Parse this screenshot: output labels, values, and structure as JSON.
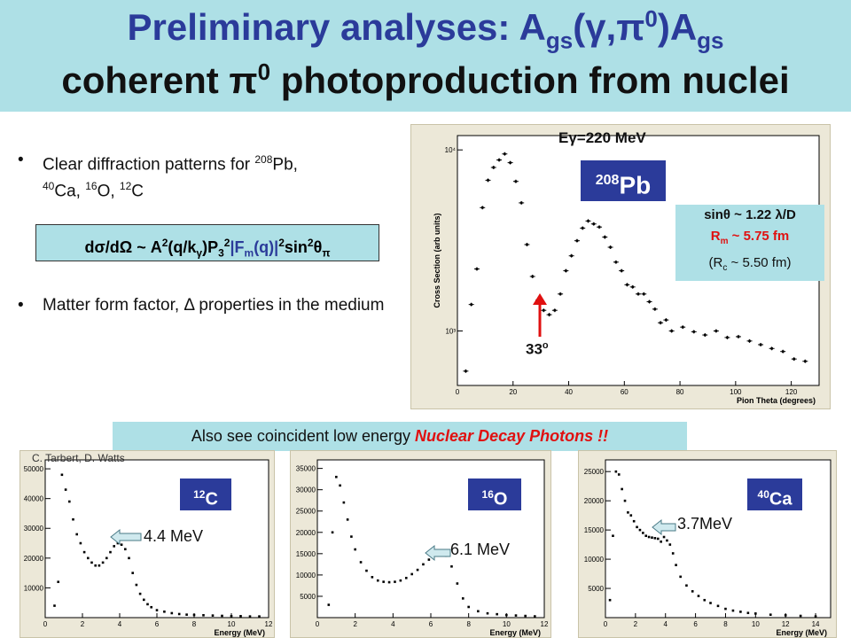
{
  "title": {
    "line1_a": "Preliminary analyses:  A",
    "line1_sub1": "gs",
    "line1_b": "(γ,π",
    "line1_sup": "0",
    "line1_c": ")A",
    "line1_sub2": "gs",
    "line2_a": "coherent π",
    "line2_sup": "0",
    "line2_b": " photoproduction from nuclei"
  },
  "bullets": {
    "dot": "•",
    "b1": {
      "t1": "Clear diffraction patterns for ",
      "s1": "208",
      "t2": "Pb, ",
      "s2": "40",
      "t3": "Ca, ",
      "s3": "16",
      "t4": "O, ",
      "s4": "12",
      "t5": "C"
    },
    "b2": {
      "t1": "Matter form factor,  Δ properties in the medium"
    }
  },
  "formula": {
    "p1": "dσ/dΩ ~ A",
    "sup1": "2",
    "p2": "(q/k",
    "sub1": "γ",
    "p3": ")P",
    "sub2": "3",
    "sup2": "2",
    "p4": "|F",
    "sub3": "m",
    "p5": "(q)|",
    "sup3": "2",
    "p6": "sin",
    "sup4": "2",
    "p7": "θ",
    "sub4": "π"
  },
  "main_plot": {
    "energy_label": "Eγ=220 MeV",
    "nucleus_mass": "208",
    "nucleus_sym": "Pb",
    "minimum_label": "33",
    "minimum_sup": "o",
    "info": {
      "line1": "sinθ ~ 1.22 λ/D",
      "line2": "R",
      "line2_sub": "m",
      "line2_b": " ~ 5.75 fm",
      "line3": "(R",
      "line3_sub": "c",
      "line3_b": " ~ 5.50 fm)"
    }
  },
  "note": {
    "a": "Also see coincident low energy ",
    "b": "Nuclear Decay Photons !!"
  },
  "credit": "C. Tarbert, D. Watts",
  "spectra": [
    {
      "mass": "12",
      "sym": "C",
      "peak": "4.4 MeV"
    },
    {
      "mass": "16",
      "sym": "O",
      "peak": "6.1 MeV"
    },
    {
      "mass": "40",
      "sym": "Ca",
      "peak": "3.7MeV"
    }
  ],
  "chart_data": [
    {
      "type": "scatter",
      "xlabel": "Pion Theta (degrees)",
      "ylabel": "Cross Section (arb units)",
      "title": "Eγ=220 MeV",
      "xlim": [
        0,
        130
      ],
      "ylim": [
        500,
        12000
      ],
      "yscale": "log",
      "xticks": [
        "0",
        "20",
        "40",
        "60",
        "80",
        "100",
        "120"
      ],
      "yticks": [
        "10³",
        "10⁴"
      ],
      "x": [
        3,
        5,
        7,
        9,
        11,
        13,
        15,
        17,
        19,
        21,
        23,
        25,
        27,
        29,
        31,
        33,
        35,
        37,
        39,
        41,
        43,
        45,
        47,
        49,
        51,
        53,
        55,
        57,
        59,
        61,
        63,
        65,
        67,
        69,
        71,
        73,
        75,
        77,
        81,
        85,
        89,
        93,
        97,
        101,
        105,
        109,
        113,
        117,
        121,
        125
      ],
      "y": [
        600,
        1400,
        2200,
        4800,
        6800,
        8000,
        8800,
        9500,
        8500,
        6700,
        5100,
        3000,
        2000,
        1480,
        1300,
        1230,
        1300,
        1600,
        2150,
        2600,
        3150,
        3700,
        4050,
        3900,
        3750,
        3300,
        2900,
        2400,
        2150,
        1800,
        1750,
        1600,
        1600,
        1450,
        1320,
        1110,
        1150,
        1000,
        1050,
        990,
        950,
        1000,
        920,
        930,
        880,
        840,
        800,
        770,
        700,
        680
      ]
    },
    {
      "type": "scatter",
      "xlabel": "Energy (MeV)",
      "xlim": [
        0,
        12
      ],
      "ylim": [
        0,
        53000
      ],
      "xticks": [
        "0",
        "2",
        "4",
        "6",
        "8",
        "10",
        "12"
      ],
      "yticks": [
        "10000",
        "20000",
        "30000",
        "40000",
        "50000"
      ],
      "x": [
        0.5,
        0.7,
        0.9,
        1.1,
        1.3,
        1.5,
        1.7,
        1.9,
        2.1,
        2.3,
        2.5,
        2.7,
        2.9,
        3.1,
        3.3,
        3.5,
        3.7,
        3.9,
        4.1,
        4.3,
        4.5,
        4.7,
        4.9,
        5.1,
        5.3,
        5.5,
        5.7,
        6.0,
        6.4,
        6.8,
        7.2,
        7.6,
        8.0,
        8.5,
        9.0,
        9.5,
        10.0,
        10.5,
        11.0,
        11.5
      ],
      "y": [
        4000,
        12000,
        48000,
        43000,
        39000,
        33000,
        28000,
        25000,
        22000,
        20000,
        18500,
        17500,
        17500,
        18500,
        20000,
        22000,
        24000,
        25000,
        24500,
        23000,
        20000,
        15000,
        11000,
        8000,
        6000,
        4500,
        3500,
        2500,
        2000,
        1500,
        1200,
        1000,
        900,
        800,
        700,
        600,
        500,
        500,
        400,
        400
      ]
    },
    {
      "type": "scatter",
      "xlabel": "Energy (MeV)",
      "xlim": [
        0,
        12
      ],
      "ylim": [
        0,
        37000
      ],
      "xticks": [
        "0",
        "2",
        "4",
        "6",
        "8",
        "10",
        "12"
      ],
      "yticks": [
        "5000",
        "10000",
        "15000",
        "20000",
        "25000",
        "30000",
        "35000"
      ],
      "x": [
        0.6,
        0.8,
        1.0,
        1.2,
        1.4,
        1.6,
        1.8,
        2.0,
        2.3,
        2.6,
        2.9,
        3.2,
        3.5,
        3.8,
        4.1,
        4.4,
        4.7,
        5.0,
        5.3,
        5.6,
        5.9,
        6.2,
        6.5,
        6.8,
        7.1,
        7.4,
        7.7,
        8.0,
        8.5,
        9.0,
        9.5,
        10.0,
        10.5,
        11.0,
        11.5
      ],
      "y": [
        3000,
        20000,
        33000,
        31000,
        27000,
        23000,
        19000,
        16000,
        13000,
        11000,
        9500,
        8700,
        8400,
        8300,
        8400,
        8700,
        9300,
        10200,
        11200,
        12500,
        13600,
        14700,
        15000,
        14500,
        12000,
        8000,
        4500,
        2500,
        1500,
        1000,
        800,
        600,
        500,
        400,
        300
      ]
    },
    {
      "type": "scatter",
      "xlabel": "Energy (MeV)",
      "xlim": [
        0,
        15
      ],
      "ylim": [
        0,
        27000
      ],
      "xticks": [
        "0",
        "2",
        "4",
        "6",
        "8",
        "10",
        "12",
        "14"
      ],
      "yticks": [
        "5000",
        "10000",
        "15000",
        "20000",
        "25000"
      ],
      "x": [
        0.3,
        0.5,
        0.7,
        0.9,
        1.1,
        1.3,
        1.5,
        1.7,
        1.9,
        2.1,
        2.3,
        2.5,
        2.7,
        2.9,
        3.1,
        3.3,
        3.5,
        3.7,
        3.9,
        4.1,
        4.3,
        4.5,
        4.7,
        5.0,
        5.4,
        5.8,
        6.2,
        6.6,
        7.0,
        7.5,
        8.0,
        8.5,
        9.0,
        9.5,
        10.0,
        11.0,
        12.0,
        13.0,
        14.0
      ],
      "y": [
        3000,
        14000,
        25000,
        24500,
        22000,
        20000,
        18000,
        17500,
        16500,
        15500,
        15000,
        14500,
        14000,
        13800,
        13700,
        13600,
        13500,
        13000,
        13800,
        13200,
        12500,
        11000,
        9000,
        7000,
        5500,
        4500,
        3700,
        3000,
        2500,
        2000,
        1500,
        1200,
        1000,
        800,
        700,
        500,
        400,
        300,
        200
      ]
    }
  ]
}
